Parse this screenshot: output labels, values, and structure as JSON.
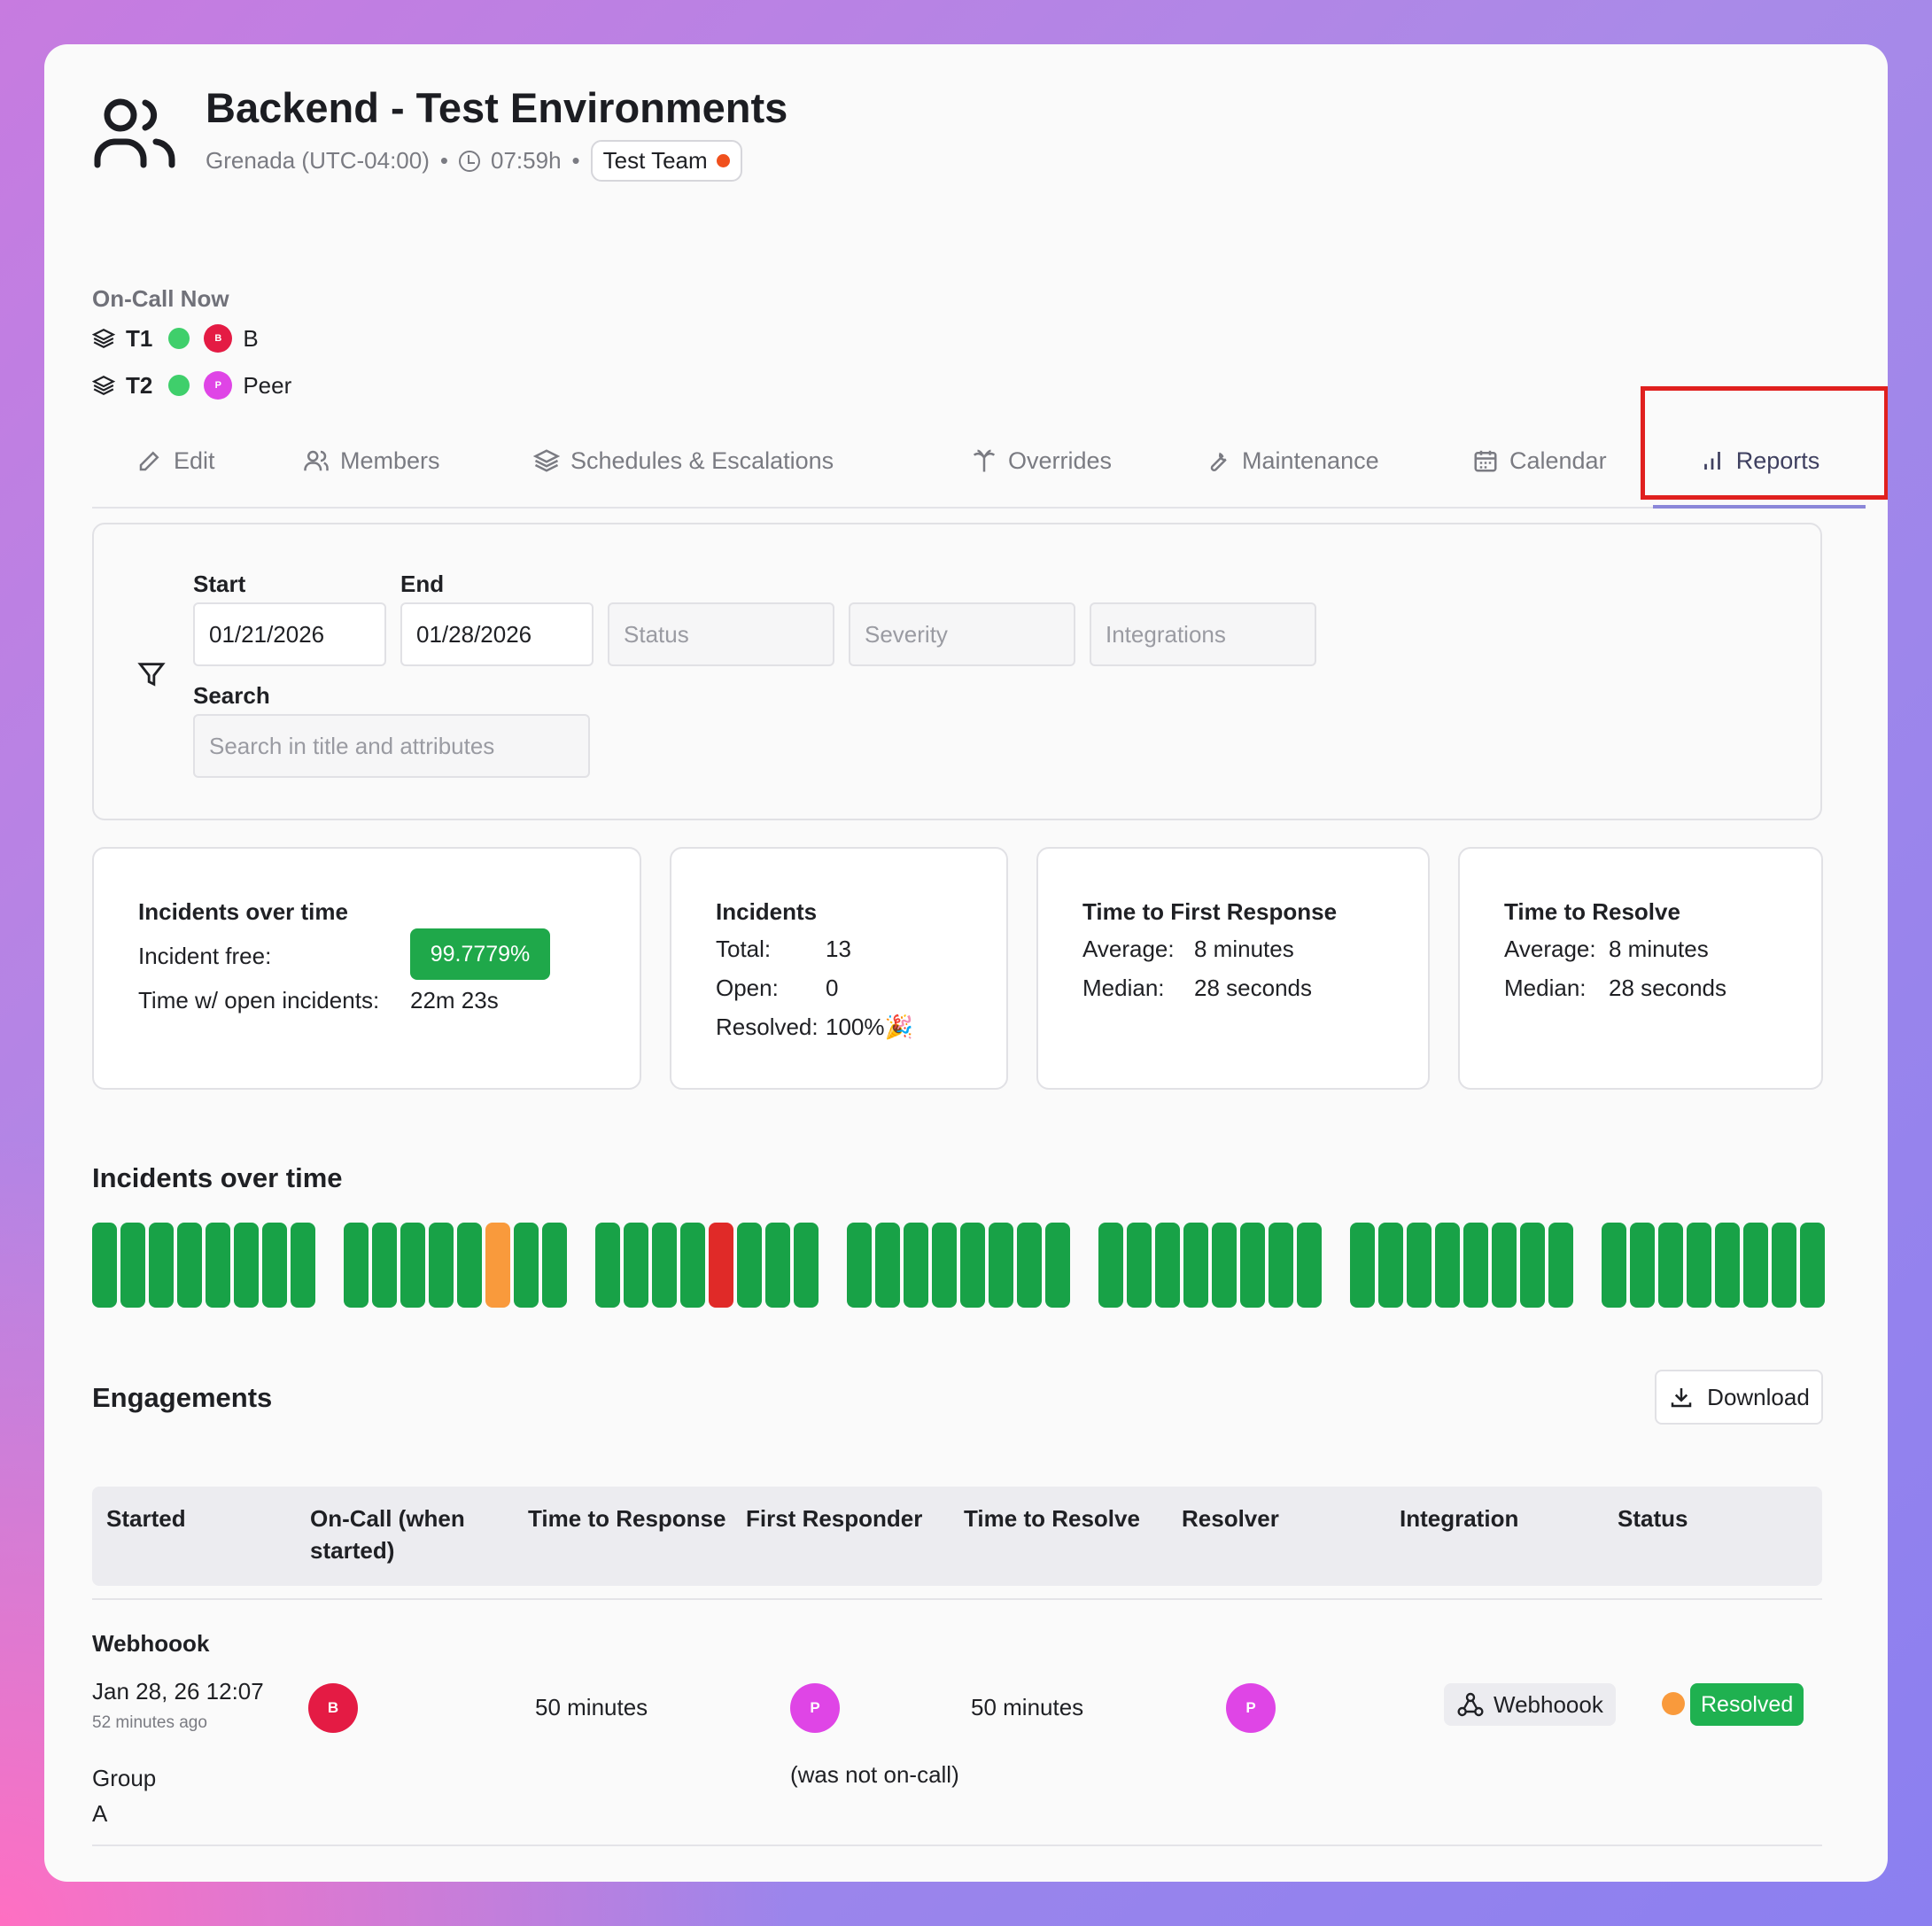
{
  "header": {
    "title": "Backend - Test Environments",
    "timezone": "Grenada (UTC-04:00)",
    "separator": "•",
    "time": "07:59h",
    "team_label": "Test Team",
    "team_status_color": "#f0501d"
  },
  "oncall": {
    "label": "On-Call Now",
    "rows": [
      {
        "tier": "T1",
        "avatar_initial": "B",
        "name": "B",
        "avatar_color": "#e41b44"
      },
      {
        "tier": "T2",
        "avatar_initial": "P",
        "name": "Peer",
        "avatar_color": "#df45e6"
      }
    ]
  },
  "tabs": [
    {
      "label": "Edit",
      "icon": "pencil-icon"
    },
    {
      "label": "Members",
      "icon": "users-icon"
    },
    {
      "label": "Schedules & Escalations",
      "icon": "layers-icon"
    },
    {
      "label": "Overrides",
      "icon": "palm-tree-icon"
    },
    {
      "label": "Maintenance",
      "icon": "wrench-icon"
    },
    {
      "label": "Calendar",
      "icon": "calendar-icon"
    },
    {
      "label": "Reports",
      "icon": "bar-chart-icon",
      "active": true
    }
  ],
  "filters": {
    "start_label": "Start",
    "start_value": "01/21/2026",
    "end_label": "End",
    "end_value": "01/28/2026",
    "status_placeholder": "Status",
    "severity_placeholder": "Severity",
    "integrations_placeholder": "Integrations",
    "search_label": "Search",
    "search_placeholder": "Search in title and attributes"
  },
  "stats": {
    "over_time": {
      "title": "Incidents over time",
      "free_label": "Incident free:",
      "free_value": "99.7779%",
      "open_label": "Time w/ open incidents:",
      "open_value": "22m 23s"
    },
    "incidents": {
      "title": "Incidents",
      "total_label": "Total:",
      "total_value": "13",
      "open_label": "Open:",
      "open_value": "0",
      "resolved_label": "Resolved:",
      "resolved_value": "100%🎉"
    },
    "first_response": {
      "title": "Time to First Response",
      "avg_label": "Average:",
      "avg_value": "8 minutes",
      "median_label": "Median:",
      "median_value": "28 seconds"
    },
    "resolve": {
      "title": "Time to Resolve",
      "avg_label": "Average:",
      "avg_value": "8 minutes",
      "median_label": "Median:",
      "median_value": "28 seconds"
    }
  },
  "timeline": {
    "title": "Incidents over time",
    "colors": {
      "ok": "#18a247",
      "warn": "#f99a3c",
      "crit": "#e02a28"
    },
    "days": [
      [
        "ok",
        "ok",
        "ok",
        "ok",
        "ok",
        "ok",
        "ok",
        "ok"
      ],
      [
        "ok",
        "ok",
        "ok",
        "ok",
        "ok",
        "warn",
        "ok",
        "ok"
      ],
      [
        "ok",
        "ok",
        "ok",
        "ok",
        "crit",
        "ok",
        "ok",
        "ok"
      ],
      [
        "ok",
        "ok",
        "ok",
        "ok",
        "ok",
        "ok",
        "ok",
        "ok"
      ],
      [
        "ok",
        "ok",
        "ok",
        "ok",
        "ok",
        "ok",
        "ok",
        "ok"
      ],
      [
        "ok",
        "ok",
        "ok",
        "ok",
        "ok",
        "ok",
        "ok",
        "ok"
      ],
      [
        "ok",
        "ok",
        "ok",
        "ok",
        "ok",
        "ok",
        "ok",
        "ok"
      ]
    ]
  },
  "engagements": {
    "title": "Engagements",
    "download_label": "Download",
    "columns": [
      "Started",
      "On-Call (when started)",
      "Time to Response",
      "First Responder",
      "Time to Resolve",
      "Resolver",
      "Integration",
      "Status"
    ],
    "row": {
      "title": "Webhoook",
      "started": "Jan 28, 26 12:07",
      "started_ago": "52 minutes ago",
      "oncall_initial": "B",
      "time_to_response": "50 minutes",
      "first_responder_initial": "P",
      "first_responder_note": "(was not on-call)",
      "time_to_resolve": "50 minutes",
      "resolver_initial": "P",
      "integration": "Webhoook",
      "status": "Resolved",
      "group_label": "Group",
      "group_value": "A"
    }
  }
}
